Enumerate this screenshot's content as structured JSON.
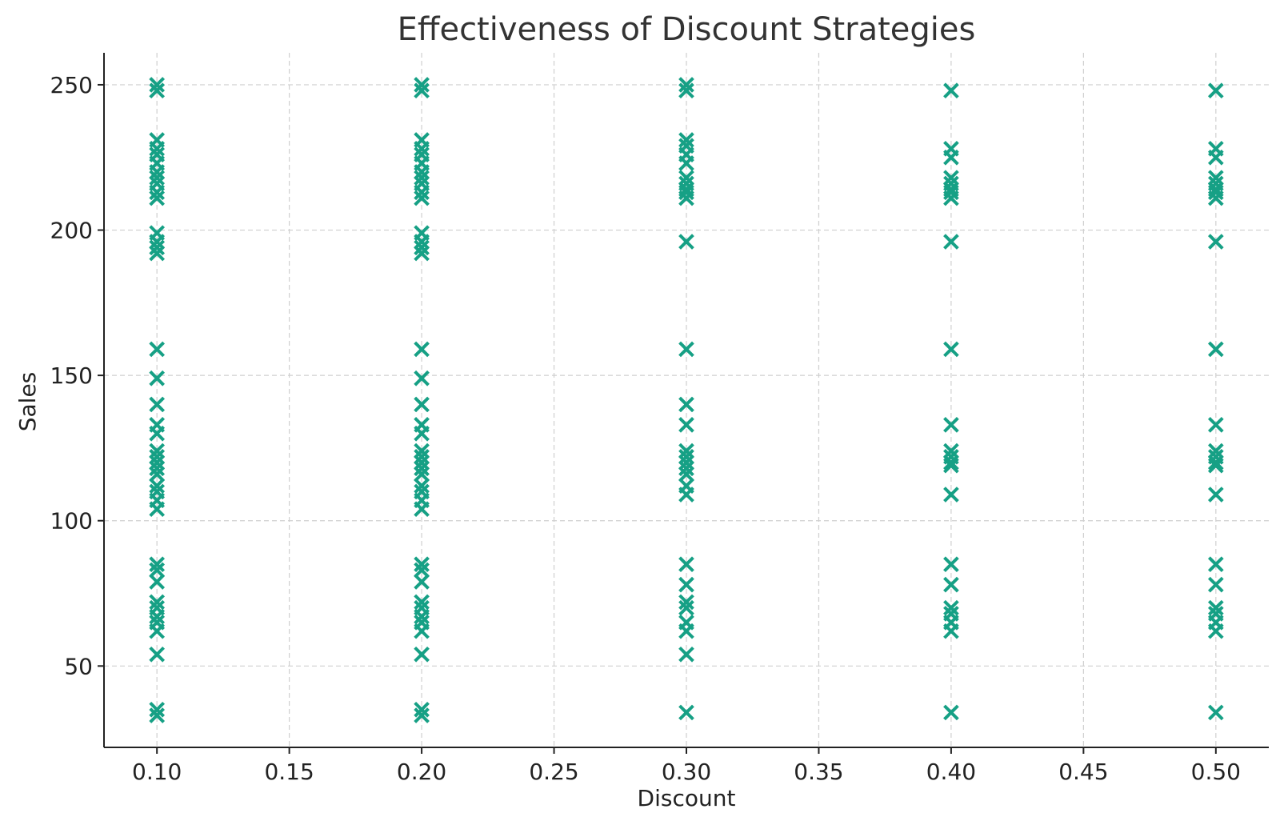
{
  "chart_data": {
    "type": "scatter",
    "title": "Effectiveness of Discount Strategies",
    "xlabel": "Discount",
    "ylabel": "Sales",
    "xlim": [
      0.08,
      0.52
    ],
    "ylim": [
      22,
      261
    ],
    "xticks": [
      0.1,
      0.15,
      0.2,
      0.25,
      0.3,
      0.35,
      0.4,
      0.45,
      0.5
    ],
    "xtick_labels": [
      "0.10",
      "0.15",
      "0.20",
      "0.25",
      "0.30",
      "0.35",
      "0.40",
      "0.45",
      "0.50"
    ],
    "yticks": [
      50,
      100,
      150,
      200,
      250
    ],
    "ytick_labels": [
      "50",
      "100",
      "150",
      "200",
      "250"
    ],
    "grid": true,
    "marker": "x",
    "color": "#16a085",
    "series": [
      {
        "points": [
          [
            0.1,
            250
          ],
          [
            0.1,
            248
          ],
          [
            0.1,
            231
          ],
          [
            0.1,
            228
          ],
          [
            0.1,
            226
          ],
          [
            0.1,
            223
          ],
          [
            0.1,
            220
          ],
          [
            0.1,
            218
          ],
          [
            0.1,
            216
          ],
          [
            0.1,
            213
          ],
          [
            0.1,
            211
          ],
          [
            0.1,
            199
          ],
          [
            0.1,
            196
          ],
          [
            0.1,
            194
          ],
          [
            0.1,
            192
          ],
          [
            0.1,
            159
          ],
          [
            0.1,
            149
          ],
          [
            0.1,
            140
          ],
          [
            0.1,
            133
          ],
          [
            0.1,
            130
          ],
          [
            0.1,
            124
          ],
          [
            0.1,
            122
          ],
          [
            0.1,
            120
          ],
          [
            0.1,
            118
          ],
          [
            0.1,
            116
          ],
          [
            0.1,
            112
          ],
          [
            0.1,
            110
          ],
          [
            0.1,
            107
          ],
          [
            0.1,
            104
          ],
          [
            0.1,
            85
          ],
          [
            0.1,
            83
          ],
          [
            0.1,
            79
          ],
          [
            0.1,
            72
          ],
          [
            0.1,
            70
          ],
          [
            0.1,
            67
          ],
          [
            0.1,
            65
          ],
          [
            0.1,
            62
          ],
          [
            0.1,
            54
          ],
          [
            0.1,
            35
          ],
          [
            0.1,
            33
          ],
          [
            0.2,
            250
          ],
          [
            0.2,
            248
          ],
          [
            0.2,
            231
          ],
          [
            0.2,
            228
          ],
          [
            0.2,
            226
          ],
          [
            0.2,
            223
          ],
          [
            0.2,
            220
          ],
          [
            0.2,
            218
          ],
          [
            0.2,
            216
          ],
          [
            0.2,
            213
          ],
          [
            0.2,
            211
          ],
          [
            0.2,
            199
          ],
          [
            0.2,
            196
          ],
          [
            0.2,
            194
          ],
          [
            0.2,
            192
          ],
          [
            0.2,
            159
          ],
          [
            0.2,
            149
          ],
          [
            0.2,
            140
          ],
          [
            0.2,
            133
          ],
          [
            0.2,
            130
          ],
          [
            0.2,
            124
          ],
          [
            0.2,
            122
          ],
          [
            0.2,
            120
          ],
          [
            0.2,
            118
          ],
          [
            0.2,
            116
          ],
          [
            0.2,
            112
          ],
          [
            0.2,
            110
          ],
          [
            0.2,
            107
          ],
          [
            0.2,
            104
          ],
          [
            0.2,
            85
          ],
          [
            0.2,
            83
          ],
          [
            0.2,
            79
          ],
          [
            0.2,
            72
          ],
          [
            0.2,
            70
          ],
          [
            0.2,
            67
          ],
          [
            0.2,
            65
          ],
          [
            0.2,
            62
          ],
          [
            0.2,
            54
          ],
          [
            0.2,
            35
          ],
          [
            0.2,
            33
          ],
          [
            0.3,
            250
          ],
          [
            0.3,
            248
          ],
          [
            0.3,
            231
          ],
          [
            0.3,
            229
          ],
          [
            0.3,
            226
          ],
          [
            0.3,
            223
          ],
          [
            0.3,
            218
          ],
          [
            0.3,
            216
          ],
          [
            0.3,
            214
          ],
          [
            0.3,
            213
          ],
          [
            0.3,
            211
          ],
          [
            0.3,
            196
          ],
          [
            0.3,
            159
          ],
          [
            0.3,
            140
          ],
          [
            0.3,
            133
          ],
          [
            0.3,
            124
          ],
          [
            0.3,
            122
          ],
          [
            0.3,
            120
          ],
          [
            0.3,
            118
          ],
          [
            0.3,
            116
          ],
          [
            0.3,
            112
          ],
          [
            0.3,
            109
          ],
          [
            0.3,
            85
          ],
          [
            0.3,
            78
          ],
          [
            0.3,
            72
          ],
          [
            0.3,
            70
          ],
          [
            0.3,
            65
          ],
          [
            0.3,
            62
          ],
          [
            0.3,
            54
          ],
          [
            0.3,
            34
          ],
          [
            0.4,
            248
          ],
          [
            0.4,
            228
          ],
          [
            0.4,
            225
          ],
          [
            0.4,
            218
          ],
          [
            0.4,
            216
          ],
          [
            0.4,
            214
          ],
          [
            0.4,
            213
          ],
          [
            0.4,
            211
          ],
          [
            0.4,
            196
          ],
          [
            0.4,
            159
          ],
          [
            0.4,
            133
          ],
          [
            0.4,
            124
          ],
          [
            0.4,
            122
          ],
          [
            0.4,
            120
          ],
          [
            0.4,
            119
          ],
          [
            0.4,
            109
          ],
          [
            0.4,
            85
          ],
          [
            0.4,
            78
          ],
          [
            0.4,
            70
          ],
          [
            0.4,
            68
          ],
          [
            0.4,
            65
          ],
          [
            0.4,
            62
          ],
          [
            0.4,
            34
          ],
          [
            0.5,
            248
          ],
          [
            0.5,
            228
          ],
          [
            0.5,
            225
          ],
          [
            0.5,
            218
          ],
          [
            0.5,
            216
          ],
          [
            0.5,
            214
          ],
          [
            0.5,
            213
          ],
          [
            0.5,
            211
          ],
          [
            0.5,
            196
          ],
          [
            0.5,
            159
          ],
          [
            0.5,
            133
          ],
          [
            0.5,
            124
          ],
          [
            0.5,
            122
          ],
          [
            0.5,
            120
          ],
          [
            0.5,
            119
          ],
          [
            0.5,
            109
          ],
          [
            0.5,
            85
          ],
          [
            0.5,
            78
          ],
          [
            0.5,
            70
          ],
          [
            0.5,
            68
          ],
          [
            0.5,
            65
          ],
          [
            0.5,
            62
          ],
          [
            0.5,
            34
          ]
        ]
      }
    ]
  }
}
